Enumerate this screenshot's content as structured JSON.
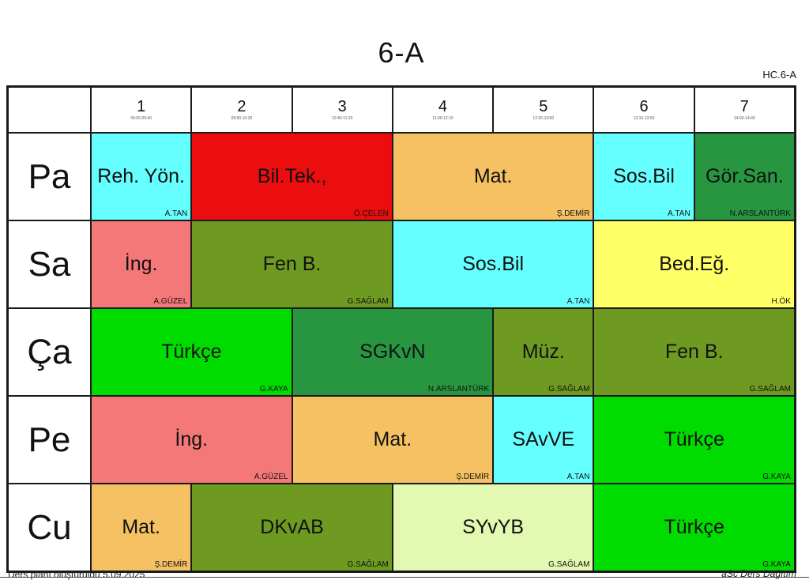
{
  "title": "6-A",
  "code": "HC.6-A",
  "footer": {
    "left": "Ders planı oluşturuldu 5.09.2025",
    "right": "aSc Ders Dağıtım"
  },
  "grid": {
    "periods": [
      {
        "num": "1",
        "time": "09:00-09:40"
      },
      {
        "num": "2",
        "time": "09:50-10:30"
      },
      {
        "num": "3",
        "time": "10:40-11:20"
      },
      {
        "num": "4",
        "time": "11:30-12:10"
      },
      {
        "num": "5",
        "time": "12:20-13:00"
      },
      {
        "num": "6",
        "time": "13:10-13:50"
      },
      {
        "num": "7",
        "time": "14:00-14:40"
      }
    ],
    "rows": [
      {
        "day": "Pa",
        "cells": [
          {
            "subject": "Reh. Yön.",
            "teacher": "A.TAN",
            "color": "#66FFFF",
            "span": 1
          },
          {
            "subject": "Bil.Tek.,",
            "teacher": "Ö.ÇELEN",
            "color": "#EC0E0E",
            "span": 2
          },
          {
            "subject": "Mat.",
            "teacher": "Ş.DEMİR",
            "color": "#F5C163",
            "span": 2
          },
          {
            "subject": "Sos.Bil",
            "teacher": "A.TAN",
            "color": "#66FFFF",
            "span": 1
          },
          {
            "subject": "Gör.San.",
            "teacher": "N.ARSLANTÜRK",
            "color": "#289641",
            "span": 1
          }
        ]
      },
      {
        "day": "Sa",
        "cells": [
          {
            "subject": "İng.",
            "teacher": "A.GÜZEL",
            "color": "#F47878",
            "span": 1
          },
          {
            "subject": "Fen B.",
            "teacher": "G.SAĞLAM",
            "color": "#6E9A22",
            "span": 2
          },
          {
            "subject": "Sos.Bil",
            "teacher": "A.TAN",
            "color": "#66FFFF",
            "span": 2
          },
          {
            "subject": "Bed.Eğ.",
            "teacher": "H.ÖK",
            "color": "#FFFF66",
            "span": 2
          }
        ]
      },
      {
        "day": "Ça",
        "cells": [
          {
            "subject": "Türkçe",
            "teacher": "G.KAYA",
            "color": "#00DC00",
            "span": 2
          },
          {
            "subject": "SGKvN",
            "teacher": "N.ARSLANTÜRK",
            "color": "#289641",
            "span": 2
          },
          {
            "subject": "Müz.",
            "teacher": "G.SAĞLAM",
            "color": "#6E9A22",
            "span": 1
          },
          {
            "subject": "Fen B.",
            "teacher": "G.SAĞLAM",
            "color": "#6E9A22",
            "span": 2
          }
        ]
      },
      {
        "day": "Pe",
        "cells": [
          {
            "subject": "İng.",
            "teacher": "A.GÜZEL",
            "color": "#F47878",
            "span": 2
          },
          {
            "subject": "Mat.",
            "teacher": "Ş.DEMİR",
            "color": "#F5C163",
            "span": 2
          },
          {
            "subject": "SAvVE",
            "teacher": "A.TAN",
            "color": "#66FFFF",
            "span": 1
          },
          {
            "subject": "Türkçe",
            "teacher": "G.KAYA",
            "color": "#00DC00",
            "span": 2
          }
        ]
      },
      {
        "day": "Cu",
        "cells": [
          {
            "subject": "Mat.",
            "teacher": "Ş.DEMİR",
            "color": "#F5C163",
            "span": 1
          },
          {
            "subject": "DKvAB",
            "teacher": "G.SAĞLAM",
            "color": "#6E9A22",
            "span": 2
          },
          {
            "subject": "SYvYB",
            "teacher": "G.SAĞLAM",
            "color": "#E3F8B0",
            "span": 2
          },
          {
            "subject": "Türkçe",
            "teacher": "G.KAYA",
            "color": "#00DC00",
            "span": 2
          }
        ]
      }
    ]
  }
}
